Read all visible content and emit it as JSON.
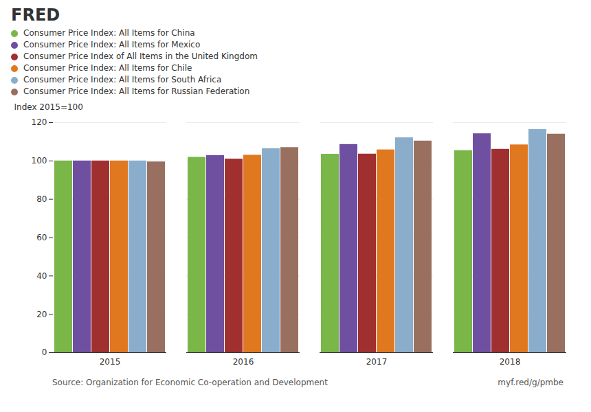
{
  "chart_data": {
    "type": "bar",
    "categories": [
      "2015",
      "2016",
      "2017",
      "2018"
    ],
    "series": [
      {
        "name": "Consumer Price Index: All Items for China",
        "color": "#7ab648",
        "values": [
          100.0,
          101.9,
          103.5,
          105.4
        ]
      },
      {
        "name": "Consumer Price Index: All Items for Mexico",
        "color": "#6e4fa0",
        "values": [
          100.0,
          102.8,
          108.6,
          114.2
        ]
      },
      {
        "name": "Consumer Price Index of All Items in the United Kingdom",
        "color": "#a03030",
        "values": [
          100.0,
          101.0,
          103.6,
          106.1
        ]
      },
      {
        "name": "Consumer Price Index: All Items for Chile",
        "color": "#e07820",
        "values": [
          100.0,
          103.0,
          105.8,
          108.4
        ]
      },
      {
        "name": "Consumer Price Index: All Items for South Africa",
        "color": "#8aadcc",
        "values": [
          100.0,
          106.4,
          112.1,
          116.4
        ]
      },
      {
        "name": "Consumer Price Index: All Items for Russian Federation",
        "color": "#997060",
        "values": [
          99.5,
          107.0,
          110.4,
          114.0
        ]
      }
    ],
    "ylabel": "Index 2015=100",
    "ylim": [
      0,
      120
    ],
    "yticks": [
      0,
      20,
      40,
      60,
      80,
      100,
      120
    ],
    "grid": true,
    "legend": "top",
    "annotations": [
      "FRED",
      "Source: Organization for Economic Co-operation and Development",
      "myf.red/g/pmbe"
    ]
  }
}
